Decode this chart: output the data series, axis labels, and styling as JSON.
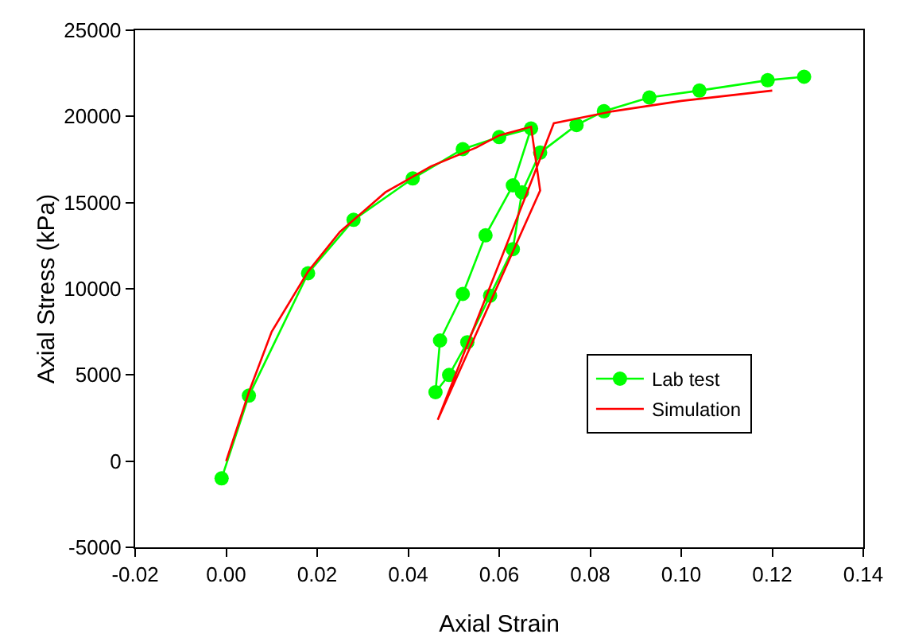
{
  "chart_data": {
    "type": "line",
    "xlabel": "Axial Strain",
    "ylabel": "Axial Stress (kPa)",
    "xlim": [
      -0.02,
      0.14
    ],
    "xticks": [
      {
        "value": -0.02,
        "label": "-0.02"
      },
      {
        "value": 0,
        "label": "0.00"
      },
      {
        "value": 0.02,
        "label": "0.02"
      },
      {
        "value": 0.04,
        "label": "0.04"
      },
      {
        "value": 0.06,
        "label": "0.06"
      },
      {
        "value": 0.08,
        "label": "0.08"
      },
      {
        "value": 0.1,
        "label": "0.10"
      },
      {
        "value": 0.12,
        "label": "0.12"
      },
      {
        "value": 0.14,
        "label": "0.14"
      }
    ],
    "ylim": [
      -5000,
      25000
    ],
    "yticks": [
      -5000,
      0,
      5000,
      10000,
      15000,
      20000,
      25000
    ],
    "grid": false,
    "legend": "bottom right",
    "series": [
      {
        "name": "Lab test",
        "color": "#00ff00",
        "marker": "circle",
        "x": [
          -0.001,
          0.005,
          0.018,
          0.028,
          0.041,
          0.052,
          0.06,
          0.067,
          0.063,
          0.057,
          0.052,
          0.047,
          0.046,
          0.049,
          0.053,
          0.058,
          0.063,
          0.065,
          0.069,
          0.077,
          0.083,
          0.093,
          0.104,
          0.119,
          0.127
        ],
        "values": [
          -1000,
          3800,
          10900,
          14000,
          16400,
          18100,
          18800,
          19300,
          16000,
          13100,
          9700,
          7000,
          4000,
          5000,
          6900,
          9600,
          12300,
          15600,
          17900,
          19500,
          20300,
          21100,
          21500,
          22100,
          22300
        ]
      },
      {
        "name": "Simulation",
        "color": "#ff0000",
        "marker": "none",
        "x": [
          0,
          0.005,
          0.01,
          0.018,
          0.025,
          0.035,
          0.045,
          0.055,
          0.06,
          0.067,
          0.069,
          0.0465,
          0.066,
          0.072,
          0.085,
          0.1,
          0.12
        ],
        "values": [
          0,
          4000,
          7500,
          11000,
          13300,
          15600,
          17100,
          18200,
          18900,
          19400,
          15700,
          2400,
          15500,
          19600,
          20300,
          20900,
          21500
        ]
      }
    ]
  }
}
